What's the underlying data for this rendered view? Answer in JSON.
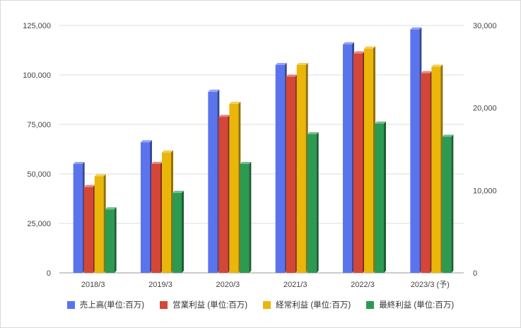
{
  "chart_data": {
    "type": "bar",
    "categories": [
      "2018/3",
      "2019/3",
      "2020/3",
      "2021/3",
      "2022/3",
      "2023/3 (予)"
    ],
    "series": [
      {
        "name": "売上高(単位:百万)",
        "color": "#5b74ee",
        "axis": "left",
        "values": [
          55000,
          66000,
          91500,
          105000,
          115500,
          123000
        ]
      },
      {
        "name": "営業利益 (単位:百万)",
        "color": "#d44637",
        "axis": "right",
        "values": [
          10400,
          13200,
          18900,
          23800,
          26600,
          24200
        ]
      },
      {
        "name": "経常利益 (単位:百万)",
        "color": "#eab60a",
        "axis": "right",
        "values": [
          11700,
          14600,
          20500,
          25200,
          27200,
          25000
        ]
      },
      {
        "name": "最終利益 (単位:百万)",
        "color": "#2d9a52",
        "axis": "right",
        "values": [
          7700,
          9700,
          13200,
          16800,
          18100,
          16500
        ]
      }
    ],
    "yleft": {
      "min": 0,
      "max": 125000,
      "ticks": [
        "0",
        "25,000",
        "50,000",
        "75,000",
        "100,000",
        "125,000"
      ]
    },
    "yright": {
      "min": 0,
      "max": 30000,
      "ticks": [
        "0",
        "10,000",
        "20,000",
        "30,000"
      ]
    },
    "grid": true,
    "legend": "bottom"
  }
}
